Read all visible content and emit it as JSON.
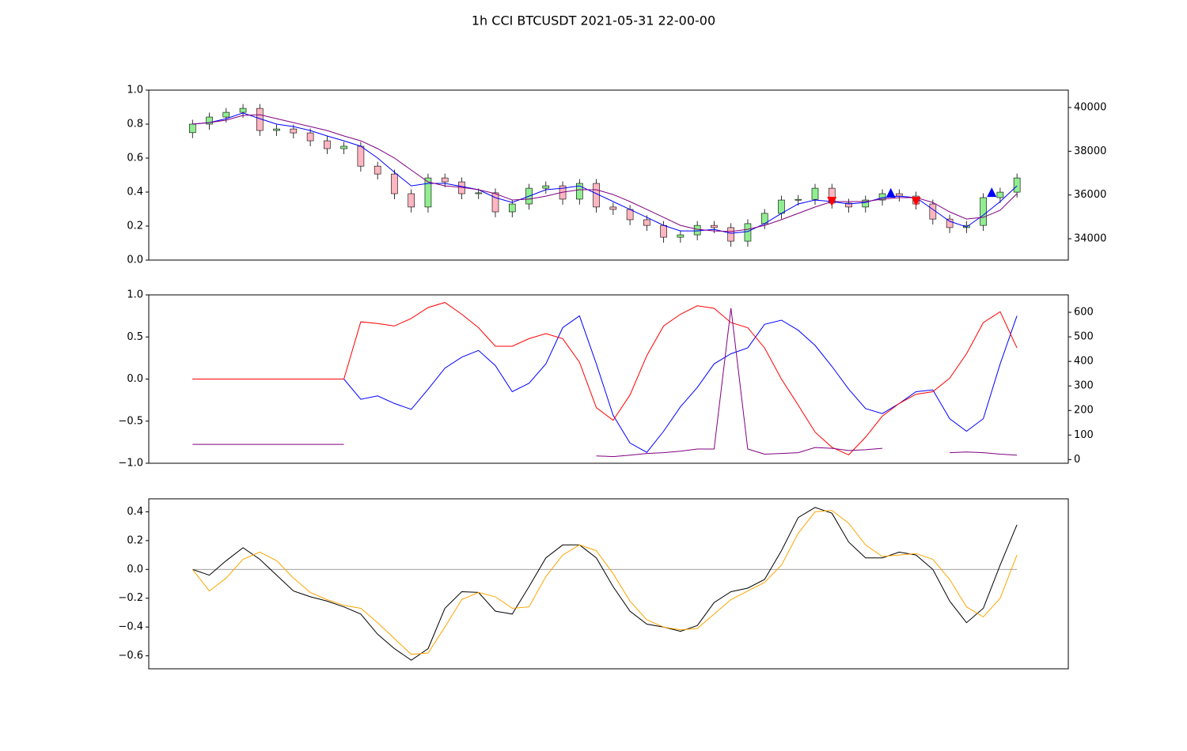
{
  "chart_data": [
    {
      "type": "candlestick",
      "title": "1h CCI BTCUSDT 2021-05-31 22-00-00",
      "axis": "y2",
      "x": [
        0,
        2,
        4,
        6,
        8,
        10,
        12,
        14,
        16,
        18,
        20,
        22,
        24,
        26,
        28,
        30,
        32,
        34,
        36,
        38,
        40,
        42,
        44,
        46,
        48,
        50,
        52,
        54,
        56,
        58,
        60,
        62,
        64,
        66,
        68,
        70,
        72,
        74,
        76,
        78,
        80,
        82,
        84,
        86,
        88,
        90,
        92,
        94,
        96,
        98
      ],
      "open": [
        38850,
        39240,
        39565,
        39780,
        39960,
        38950,
        39020,
        38840,
        38480,
        38120,
        38230,
        37320,
        36960,
        36060,
        35450,
        36780,
        36600,
        36060,
        36100,
        35230,
        35590,
        36310,
        36420,
        35810,
        36530,
        35450,
        35340,
        34870,
        34610,
        34070,
        34180,
        34610,
        34510,
        33890,
        34690,
        35160,
        35770,
        35800,
        36310,
        35630,
        35450,
        35770,
        36060,
        35950,
        35590,
        34900,
        34510,
        34610,
        35880,
        36130
      ],
      "high": [
        39440,
        39765,
        39980,
        40160,
        40160,
        39220,
        39220,
        39040,
        38680,
        38430,
        38430,
        37520,
        37160,
        36260,
        36980,
        36980,
        36800,
        36300,
        36300,
        35790,
        36510,
        36620,
        36620,
        36730,
        36730,
        35650,
        35540,
        35070,
        34810,
        34380,
        34810,
        34810,
        34710,
        34890,
        35360,
        35970,
        36000,
        36510,
        36510,
        35830,
        35970,
        36260,
        36260,
        36150,
        35790,
        35100,
        34810,
        36080,
        36330,
        36980
      ],
      "low": [
        38600,
        38990,
        39315,
        39530,
        38700,
        38700,
        38590,
        38230,
        37870,
        37870,
        37070,
        36710,
        35810,
        35200,
        35200,
        36350,
        35810,
        35810,
        34980,
        34980,
        35340,
        36060,
        35560,
        35560,
        35200,
        35090,
        34620,
        34360,
        33820,
        33820,
        33930,
        34260,
        33640,
        33640,
        34440,
        34910,
        35520,
        35550,
        35380,
        35200,
        35200,
        35520,
        35700,
        35340,
        34650,
        34260,
        34260,
        34360,
        35630,
        35880
      ],
      "close": [
        39240,
        39565,
        39780,
        39960,
        38950,
        39020,
        38840,
        38480,
        38120,
        38230,
        37320,
        36960,
        36060,
        35450,
        36780,
        36600,
        36060,
        36100,
        35230,
        35590,
        36310,
        36420,
        35810,
        36530,
        35450,
        35340,
        34870,
        34610,
        34070,
        34180,
        34610,
        34510,
        33890,
        34690,
        35160,
        35770,
        35800,
        36310,
        35630,
        35450,
        35770,
        36060,
        35950,
        35590,
        34900,
        34510,
        34610,
        35880,
        36130,
        36780
      ],
      "up_color": "#90ee90",
      "down_color": "#ffb6c1",
      "wick_color": "#000000",
      "series": [
        {
          "color": "blue",
          "axis": "y2",
          "values": [
            39240,
            39310,
            39490,
            39750,
            39490,
            39240,
            39130,
            38950,
            38700,
            38480,
            38230,
            37690,
            37040,
            36420,
            36530,
            36530,
            36390,
            36240,
            35880,
            35660,
            35950,
            36240,
            36310,
            36420,
            36060,
            35700,
            35340,
            34980,
            34610,
            34360,
            34360,
            34430,
            34250,
            34330,
            34690,
            35160,
            35590,
            35770,
            35700,
            35590,
            35660,
            35880,
            35950,
            35880,
            35340,
            34800,
            34540,
            35080,
            35700,
            36420
          ]
        },
        {
          "color": "purple",
          "axis": "y2",
          "values": [
            39240,
            39310,
            39420,
            39640,
            39670,
            39490,
            39310,
            39130,
            38950,
            38700,
            38480,
            38120,
            37690,
            37140,
            36600,
            36420,
            36350,
            36240,
            36060,
            35770,
            35810,
            35950,
            36130,
            36240,
            36240,
            36020,
            35700,
            35340,
            34980,
            34610,
            34430,
            34360,
            34330,
            34430,
            34610,
            34870,
            35160,
            35450,
            35700,
            35700,
            35700,
            35810,
            35880,
            35880,
            35660,
            35230,
            34900,
            34980,
            35300,
            36060
          ]
        }
      ],
      "markers": [
        {
          "color": "red",
          "shape": "v",
          "x": [
            76,
            86
          ],
          "values": [
            35700,
            35700
          ]
        },
        {
          "color": "blue",
          "shape": "^",
          "x": [
            83,
            95
          ],
          "values": [
            36100,
            36130
          ]
        }
      ],
      "xlim": [
        -5.2,
        104.1
      ],
      "ylim": [
        0,
        1
      ],
      "yticks": [
        {
          "value": 0,
          "label": "0.0"
        },
        0.2,
        0.4,
        0.6,
        0.8,
        {
          "value": 1,
          "label": "1.0"
        }
      ],
      "y2lim": [
        33025,
        40795
      ],
      "y2ticks": [
        34000,
        36000,
        38000,
        40000
      ]
    },
    {
      "type": "line",
      "x": [
        0,
        2,
        4,
        6,
        8,
        10,
        12,
        14,
        16,
        18,
        20,
        22,
        24,
        26,
        28,
        30,
        32,
        34,
        36,
        38,
        40,
        42,
        44,
        46,
        48,
        50,
        52,
        54,
        56,
        58,
        60,
        62,
        64,
        66,
        68,
        70,
        72,
        74,
        76,
        78,
        80,
        82,
        84,
        86,
        88,
        90,
        92,
        94,
        96,
        98
      ],
      "series": [
        {
          "color": "blue",
          "values": [
            0,
            0,
            0,
            0,
            0,
            0,
            0,
            0,
            0,
            0,
            -0.24,
            -0.2,
            -0.29,
            -0.36,
            -0.12,
            0.13,
            0.26,
            0.34,
            0.16,
            -0.15,
            -0.05,
            0.18,
            0.61,
            0.75,
            0.18,
            -0.43,
            -0.76,
            -0.87,
            -0.62,
            -0.33,
            -0.1,
            0.18,
            0.3,
            0.37,
            0.65,
            0.7,
            0.58,
            0.4,
            0.15,
            -0.12,
            -0.35,
            -0.41,
            -0.29,
            -0.15,
            -0.13,
            -0.47,
            -0.62,
            -0.47,
            0.18,
            0.75
          ]
        },
        {
          "color": "red",
          "values": [
            0,
            0,
            0,
            0,
            0,
            0,
            0,
            0,
            0,
            0,
            0.68,
            0.66,
            0.63,
            0.72,
            0.85,
            0.91,
            0.77,
            0.61,
            0.39,
            0.39,
            0.48,
            0.54,
            0.48,
            0.2,
            -0.34,
            -0.49,
            -0.19,
            0.28,
            0.63,
            0.77,
            0.87,
            0.84,
            0.67,
            0.61,
            0.37,
            0,
            -0.31,
            -0.63,
            -0.81,
            -0.9,
            -0.69,
            -0.44,
            -0.29,
            -0.18,
            -0.15,
            0.01,
            0.3,
            0.67,
            0.8,
            0.37
          ]
        },
        {
          "color": "purple",
          "axis": "y2",
          "values": [
            62,
            62,
            62,
            62,
            62,
            62,
            62,
            62,
            62,
            62,
            null,
            null,
            null,
            null,
            null,
            null,
            null,
            null,
            null,
            null,
            null,
            null,
            null,
            null,
            15,
            12,
            18,
            25,
            28,
            34,
            43,
            43,
            617,
            43,
            22,
            25,
            28,
            49,
            46,
            37,
            40,
            46,
            null,
            null,
            null,
            28,
            31,
            28,
            22,
            18
          ]
        }
      ],
      "xlim": [
        -5.2,
        104.1
      ],
      "ylim": [
        -1,
        1
      ],
      "yticks": [
        {
          "value": -1,
          "label": "−1.0"
        },
        {
          "value": -0.5,
          "label": "−0.5"
        },
        {
          "value": 0,
          "label": "0.0"
        },
        0.5,
        {
          "value": 1,
          "label": "1.0"
        }
      ],
      "y2lim": [
        -15,
        671
      ],
      "y2ticks": [
        0,
        100,
        200,
        300,
        400,
        500,
        600
      ]
    },
    {
      "type": "line",
      "x": [
        0,
        2,
        4,
        6,
        8,
        10,
        12,
        14,
        16,
        18,
        20,
        22,
        24,
        26,
        28,
        30,
        32,
        34,
        36,
        38,
        40,
        42,
        44,
        46,
        48,
        50,
        52,
        54,
        56,
        58,
        60,
        62,
        64,
        66,
        68,
        70,
        72,
        74,
        76,
        78,
        80,
        82,
        84,
        86,
        88,
        90,
        92,
        94,
        96,
        98
      ],
      "hline": 0,
      "hline_color": "gray",
      "series": [
        {
          "color": "black",
          "values": [
            0,
            -0.04,
            0.06,
            0.15,
            0.07,
            -0.04,
            -0.15,
            -0.19,
            -0.22,
            -0.26,
            -0.31,
            -0.45,
            -0.55,
            -0.63,
            -0.55,
            -0.27,
            -0.155,
            -0.16,
            -0.29,
            -0.31,
            -0.12,
            0.08,
            0.17,
            0.17,
            0.08,
            -0.12,
            -0.29,
            -0.38,
            -0.4,
            -0.43,
            -0.39,
            -0.23,
            -0.155,
            -0.13,
            -0.07,
            0.13,
            0.36,
            0.43,
            0.39,
            0.19,
            0.08,
            0.08,
            0.12,
            0.1,
            0,
            -0.22,
            -0.37,
            -0.27,
            0.03,
            0.31
          ]
        },
        {
          "color": "orange",
          "values": [
            0,
            -0.15,
            -0.06,
            0.07,
            0.12,
            0.06,
            -0.06,
            -0.16,
            -0.21,
            -0.25,
            -0.27,
            -0.37,
            -0.48,
            -0.59,
            -0.58,
            -0.4,
            -0.21,
            -0.16,
            -0.19,
            -0.27,
            -0.26,
            -0.05,
            0.1,
            0.17,
            0.13,
            -0.03,
            -0.22,
            -0.35,
            -0.4,
            -0.42,
            -0.41,
            -0.31,
            -0.21,
            -0.15,
            -0.09,
            0.03,
            0.25,
            0.4,
            0.41,
            0.32,
            0.17,
            0.09,
            0.1,
            0.11,
            0.07,
            -0.07,
            -0.26,
            -0.33,
            -0.2,
            0.1
          ]
        }
      ],
      "xlim": [
        -5.2,
        104.1
      ],
      "ylim": [
        -0.69,
        0.49
      ],
      "yticks": [
        {
          "value": -0.6,
          "label": "−0.6"
        },
        {
          "value": -0.4,
          "label": "−0.4"
        },
        {
          "value": -0.2,
          "label": "−0.2"
        },
        {
          "value": 0,
          "label": "0.0"
        },
        0.2,
        0.4
      ]
    }
  ]
}
